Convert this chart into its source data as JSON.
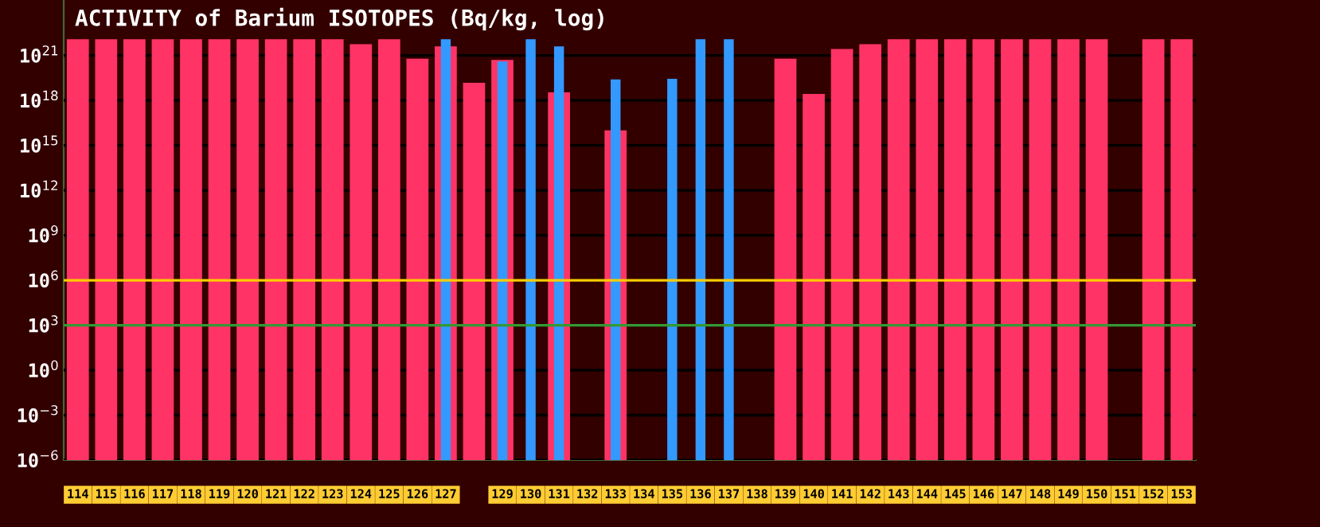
{
  "chart_data": {
    "type": "bar",
    "title": "ACTIVITY of Barium ISOTOPES (Bq/kg, log)",
    "categories": [
      "114",
      "115",
      "116",
      "117",
      "118",
      "119",
      "120",
      "121",
      "122",
      "123",
      "124",
      "125",
      "126",
      "127",
      null,
      "129",
      "130",
      "131",
      "132",
      "133",
      "134",
      "135",
      "136",
      "137",
      "138",
      "139",
      "140",
      "141",
      "142",
      "143",
      "144",
      "145",
      "146",
      "147",
      "148",
      "149",
      "150",
      "151",
      "152",
      "153"
    ],
    "series": [
      {
        "color": "#ff3366",
        "values": [
          1.2e+22,
          1.2e+22,
          1.2e+22,
          1.2e+22,
          1.2e+22,
          1.2e+22,
          1.2e+22,
          1.2e+22,
          1.2e+22,
          1.2e+22,
          5.6e+21,
          1.2e+22,
          6e+20,
          4e+21,
          1.5e+19,
          5e+20,
          null,
          3.5e+18,
          null,
          1e+16,
          null,
          null,
          null,
          null,
          null,
          6e+20,
          2.7e+18,
          2.7e+21,
          5.6e+21,
          1.2e+22,
          1.2e+22,
          1.2e+22,
          1.2e+22,
          1.2e+22,
          1.2e+22,
          1.2e+22,
          1.2e+22,
          null,
          1.2e+22,
          1.2e+22
        ]
      },
      {
        "color": "#3399ff",
        "values": [
          null,
          null,
          null,
          null,
          null,
          null,
          null,
          null,
          null,
          null,
          null,
          null,
          null,
          1.2e+22,
          null,
          4e+20,
          1.2e+22,
          4e+21,
          null,
          2.5e+19,
          null,
          2.8e+19,
          1.2e+22,
          1.2e+22,
          null,
          null,
          null,
          null,
          null,
          null,
          null,
          null,
          null,
          null,
          null,
          null,
          null,
          null,
          null,
          null
        ]
      }
    ],
    "log": true,
    "ylim": [
      1e-06,
      5e+24
    ],
    "yticks": [
      {
        "value": 1e-06,
        "label": "10$^{−6}$"
      },
      {
        "value": 0.001,
        "label": "10$^{−3}$"
      },
      {
        "value": 1,
        "label": "10$^{0}$"
      },
      {
        "value": 1000.0,
        "label": "10$^{3}$"
      },
      {
        "value": 1000000.0,
        "label": "10$^{6}$"
      },
      {
        "value": 1000000000.0,
        "label": "10$^{9}$"
      },
      {
        "value": 1000000000000.0,
        "label": "10$^{12}$"
      },
      {
        "value": 1000000000000000.0,
        "label": "10$^{15}$"
      },
      {
        "value": 1e+18,
        "label": "10$^{18}$"
      },
      {
        "value": 1e+21,
        "label": "10$^{21}$"
      }
    ],
    "grid": "y",
    "ref_lines": [
      {
        "axis": "y",
        "value": 1000000.0,
        "color": "#ffcc00"
      },
      {
        "axis": "y",
        "value": 1000.0,
        "color": "#339933"
      }
    ]
  }
}
